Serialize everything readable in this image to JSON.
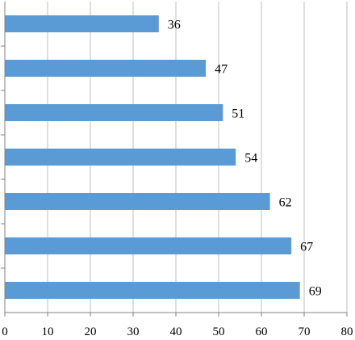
{
  "chart_data": {
    "type": "bar",
    "orientation": "horizontal",
    "title": "",
    "xlabel": "",
    "ylabel": "",
    "categories": [
      "",
      "",
      "",
      "",
      "",
      "",
      ""
    ],
    "values": [
      36,
      47,
      51,
      54,
      62,
      67,
      69
    ],
    "data_labels": [
      "36",
      "47",
      "51",
      "54",
      "62",
      "67",
      "69"
    ],
    "xlim": [
      0,
      80
    ],
    "x_ticks": [
      "0",
      "10",
      "20",
      "30",
      "40",
      "50",
      "60",
      "70",
      "80"
    ],
    "grid": "vertical",
    "legend": "none",
    "colors": {
      "bar": "#5b9bd5",
      "gridline": "#bfbfbf",
      "axis": "#808080",
      "text": "#000000"
    }
  }
}
